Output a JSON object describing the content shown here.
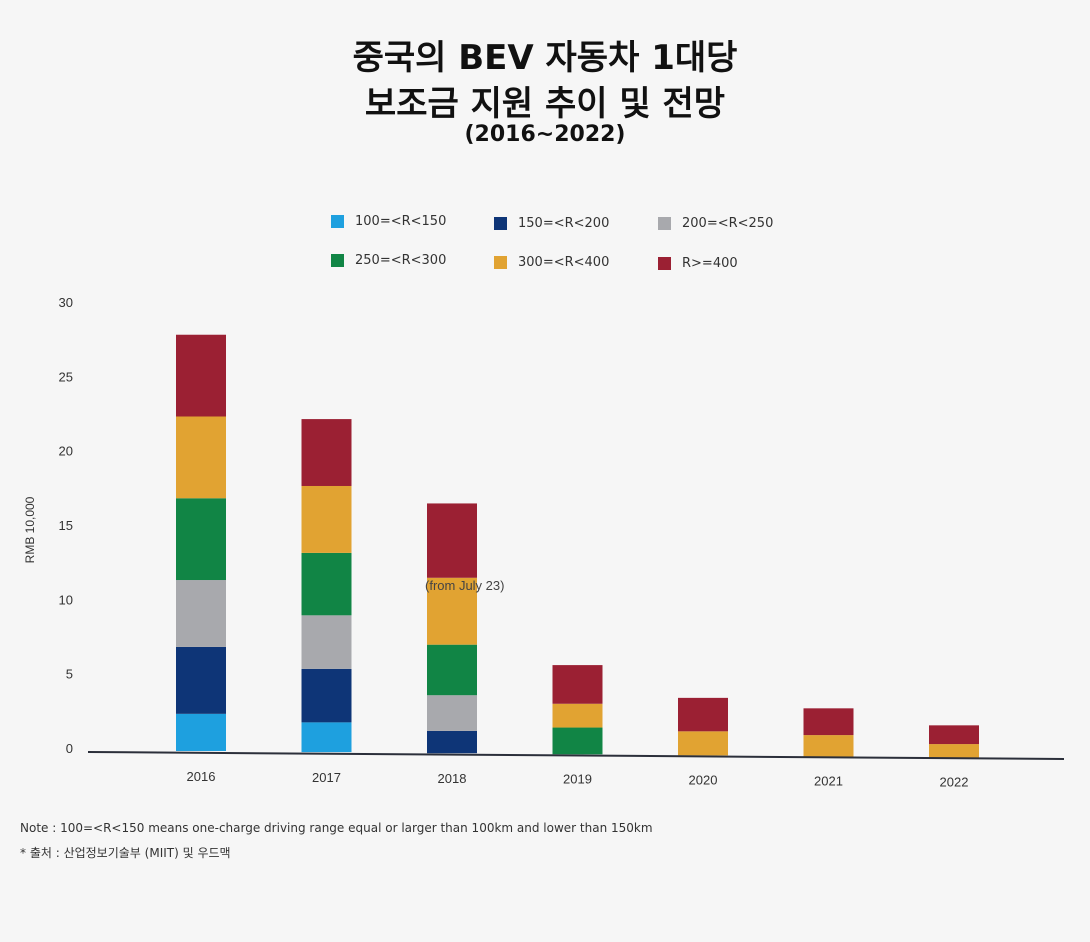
{
  "title": {
    "line1": "중국의 BEV 자동차 1대당",
    "line2": "보조금 지원 추이 및 전망",
    "line3": "(2016~2022)"
  },
  "colors": {
    "r100_150": "#1ea0df",
    "r150_200": "#0e3577",
    "r200_250": "#a8a9ad",
    "r250_300": "#118545",
    "r300_400": "#e1a332",
    "r400": "#9b2033"
  },
  "legend": [
    {
      "label": "100=<R<150",
      "color": "#1ea0df"
    },
    {
      "label": "150=<R<200",
      "color": "#0e3577"
    },
    {
      "label": "200=<R<250",
      "color": "#a8a9ad"
    },
    {
      "label": "250=<R<300",
      "color": "#118545"
    },
    {
      "label": "300=<R<400",
      "color": "#e1a332"
    },
    {
      "label": "R>=400",
      "color": "#9b2033"
    }
  ],
  "chart_data": {
    "type": "bar",
    "stacked": true,
    "categories": [
      "2016",
      "2017",
      "2018",
      "2019",
      "2020",
      "2021",
      "2022"
    ],
    "series": [
      {
        "name": "100=<R<150",
        "color": "#1ea0df",
        "values": [
          2.5,
          2.0,
          0,
          0,
          0,
          0,
          0
        ]
      },
      {
        "name": "150=<R<200",
        "color": "#0e3577",
        "values": [
          4.5,
          3.6,
          1.5,
          0,
          0,
          0,
          0
        ]
      },
      {
        "name": "200=<R<250",
        "color": "#a8a9ad",
        "values": [
          4.5,
          3.6,
          2.4,
          0,
          0,
          0,
          0
        ]
      },
      {
        "name": "250=<R<300",
        "color": "#118545",
        "values": [
          5.5,
          4.2,
          3.4,
          1.8,
          0,
          0,
          0
        ]
      },
      {
        "name": "300=<R<400",
        "color": "#e1a332",
        "values": [
          5.5,
          4.5,
          4.5,
          1.6,
          1.62,
          1.44,
          0.91
        ]
      },
      {
        "name": "R>=400",
        "color": "#9b2033",
        "values": [
          5.5,
          4.5,
          5.0,
          2.6,
          2.25,
          1.8,
          1.26
        ]
      }
    ],
    "ylabel": "RMB 10,000",
    "ylim": [
      0,
      30
    ],
    "yticks": [
      "30",
      "25",
      "20",
      "15",
      "10",
      "5",
      "0"
    ],
    "annotation": "(from July 23)",
    "legend_position": "top",
    "grid": false
  },
  "notes": {
    "note1": "Note : 100=<R<150 means one-charge driving range equal or larger than 100km and lower than 150km",
    "note2": "* 출처 : 산업정보기술부 (MIIT) 및 우드맥"
  }
}
